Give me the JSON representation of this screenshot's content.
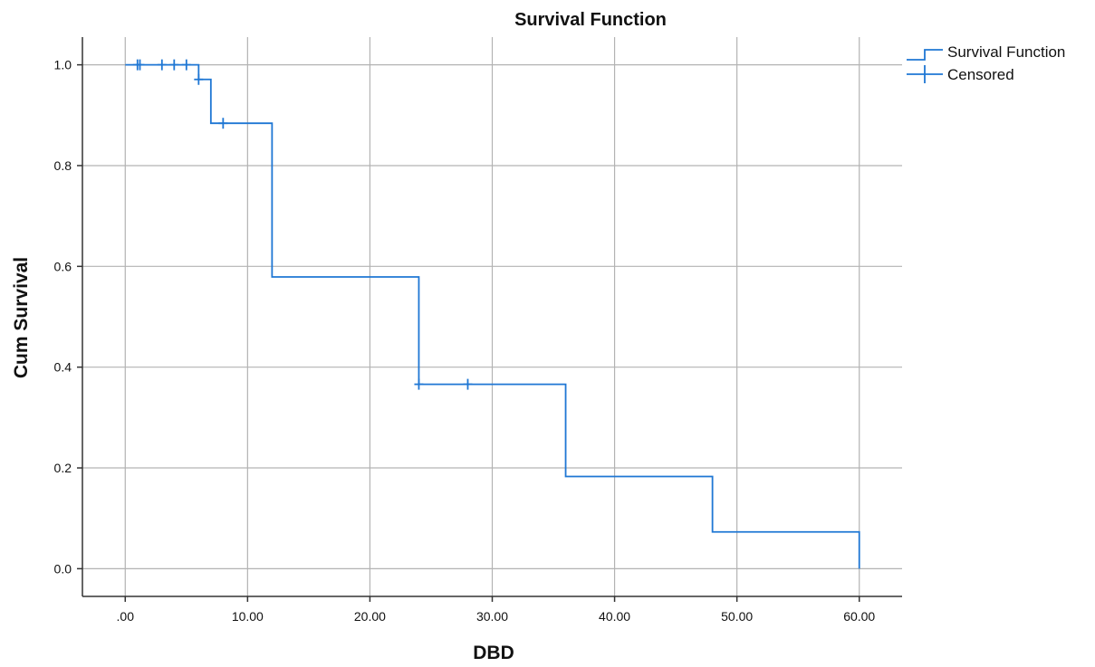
{
  "chart_data": {
    "type": "line",
    "title": "Survival Function",
    "xlabel": "DBD",
    "ylabel": "Cum Survival",
    "xlim": [
      -3.5,
      63.5
    ],
    "ylim": [
      -0.055,
      1.055
    ],
    "x_ticks": [
      0,
      10,
      20,
      30,
      40,
      50,
      60
    ],
    "x_tick_labels": [
      ".00",
      "10.00",
      "20.00",
      "30.00",
      "40.00",
      "50.00",
      "60.00"
    ],
    "y_ticks": [
      0.0,
      0.2,
      0.4,
      0.6,
      0.8,
      1.0
    ],
    "y_tick_labels": [
      "0.0",
      "0.2",
      "0.4",
      "0.6",
      "0.8",
      "1.0"
    ],
    "grid": true,
    "legend_position": "top-right",
    "color": "#1f77d4",
    "series": [
      {
        "name": "Survival Function",
        "kind": "step",
        "points": [
          [
            0,
            1.0
          ],
          [
            6,
            0.971
          ],
          [
            7,
            0.884
          ],
          [
            12,
            0.579
          ],
          [
            24,
            0.366
          ],
          [
            36,
            0.183
          ],
          [
            48,
            0.073
          ],
          [
            60,
            0.0
          ]
        ]
      },
      {
        "name": "Censored",
        "kind": "marker",
        "points": [
          [
            1,
            1.0
          ],
          [
            1.2,
            1.0
          ],
          [
            3,
            1.0
          ],
          [
            4,
            1.0
          ],
          [
            5,
            1.0
          ],
          [
            6,
            0.971
          ],
          [
            8,
            0.884
          ],
          [
            24,
            0.366
          ],
          [
            28,
            0.366
          ]
        ]
      }
    ]
  }
}
